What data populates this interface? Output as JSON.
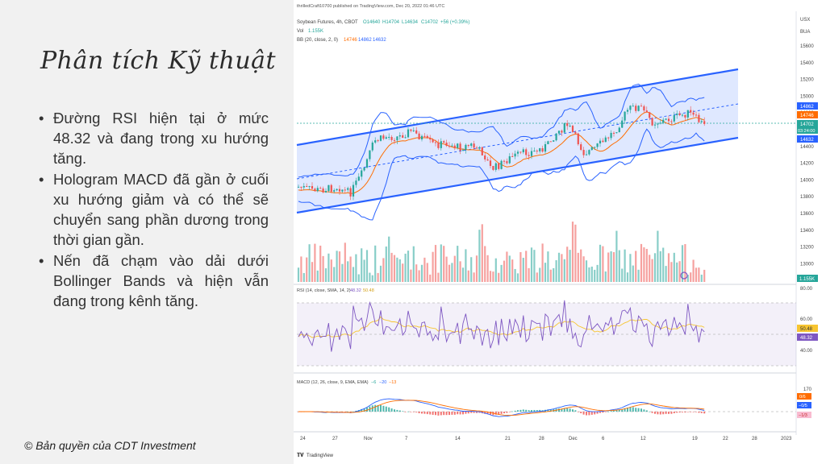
{
  "slide": {
    "title": "Phân tích Kỹ thuật",
    "bullets": [
      "Đường RSI hiện tại ở mức 48.32 và đang trong xu hướng tăng.",
      "Hologram MACD đã gần ở cuối xu hướng giảm và có thể sẽ chuyển sang phần dương trong thời gian gần.",
      "Nến đã chạm vào dải dưới Bollinger Bands và hiện vẫn đang trong kênh tăng."
    ],
    "copyright": "© Bản quyền của CDT Investment"
  },
  "chart": {
    "publish_note": "thrilledCraft10700 published on TradingView.com, Dec 20, 2022 01:46 UTC",
    "symbol_line": "Soybean Futures, 4h, CBOT",
    "ohlc": {
      "open": "O14640",
      "high": "H14704",
      "low": "L14634",
      "close": "C14702",
      "change": "+56 (+0.39%)"
    },
    "vol_label": "Vol",
    "vol_value": "1.155K",
    "bb_label": "BB (20, close, 2, 0)",
    "bb_values": [
      "14746",
      "14862",
      "14632"
    ],
    "currency": "USX",
    "unit": "BUA",
    "price_ticks": [
      "15600",
      "15400",
      "15200",
      "15000",
      "14800",
      "14600",
      "14400",
      "14200",
      "14000",
      "13800",
      "13600",
      "13400",
      "13200",
      "13000"
    ],
    "price_badges": {
      "bb_upper": "14862",
      "bb_middle": "14746",
      "last": "14702",
      "countdown": "03:24:00",
      "bb_lower": "14632",
      "volume": "1.155K"
    },
    "rsi_label": "RSI (14, close, SMA, 14, 2)",
    "rsi_values": [
      "48.32",
      "50.48"
    ],
    "rsi_ticks": [
      "80.00",
      "60.00",
      "40.00"
    ],
    "rsi_badges": [
      "50.48",
      "48.32"
    ],
    "macd_label": "MACD (12, 26, close, 9, EMA, EMA)",
    "macd_values": [
      "−6",
      "−20",
      "−13"
    ],
    "macd_ticks": [
      "170"
    ],
    "macd_badges": [
      "0/6",
      "−0/5",
      "−1/3"
    ],
    "x_ticks": [
      "24",
      "27",
      "Nov",
      "7",
      "14",
      "21",
      "28",
      "Dec",
      "6",
      "12",
      "19",
      "22",
      "28",
      "2023"
    ],
    "logo": "TradingView",
    "colors": {
      "channel": "#2962ff",
      "bb": "#2962ff",
      "basis": "#ff6d00",
      "up": "#26a69a",
      "down": "#ef5350",
      "rsi": "#7e57c2",
      "rsi_ma": "#f7c531",
      "macd": "#2962ff",
      "signal": "#ff6d00"
    }
  }
}
